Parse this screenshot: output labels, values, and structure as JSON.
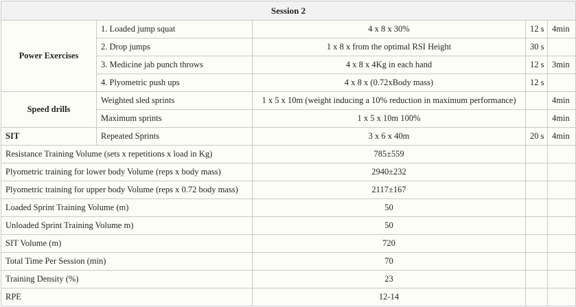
{
  "title": "Session 2",
  "groups": [
    {
      "name": "Power Exercises",
      "exercises": [
        {
          "name": "1. Loaded jump squat",
          "protocol": "4 x 8 x 30%",
          "rest": "12 s",
          "duration": "4min"
        },
        {
          "name": "2. Drop jumps",
          "protocol": "1 x 8 x from the optimal RSI Height",
          "rest": "30 s"
        },
        {
          "name": "3. Medicine jab punch throws",
          "protocol": "4 x 8 x 4Kg in each hand",
          "rest": "12 s",
          "duration": "3min"
        },
        {
          "name": "4. Plyometric push ups",
          "protocol": "4 x 8 x (0.72xBody mass)",
          "rest": "12 s"
        }
      ]
    },
    {
      "name": "Speed drills",
      "exercises": [
        {
          "name": "Weighted sled sprints",
          "protocol": "1 x 5 x 10m (weight inducing a 10% reduction in maximum performance)",
          "duration": "4min"
        },
        {
          "name": "Maximum sprints",
          "protocol": "1 x 5 x 10m 100%",
          "duration": "4min"
        }
      ]
    },
    {
      "name": "SIT",
      "exercises": [
        {
          "name": "Repeated Sprints",
          "protocol": "3 x 6 x 40m",
          "rest": "20 s",
          "duration": "4min"
        }
      ]
    }
  ],
  "volumes": [
    {
      "label": "Resistance Training Volume (sets x repetitions x load in Kg)",
      "value": "785±559"
    },
    {
      "label": "Plyometric training for lower body Volume (reps x body mass)",
      "value": "2940±232"
    },
    {
      "label": "Plyometric training for upper body Volume (reps x 0.72 body mass)",
      "value": "2117±167"
    },
    {
      "label": "Loaded Sprint Training Volume (m)",
      "value": "50"
    },
    {
      "label": "Unloaded Sprint Training Volume m)",
      "value": "50"
    },
    {
      "label": "SIT Volume (m)",
      "value": "720"
    },
    {
      "label": "Total Time Per Session (min)",
      "value": "70"
    },
    {
      "label": "Training Density (%)",
      "value": "23"
    },
    {
      "label": "RPE",
      "value": "12-14"
    }
  ]
}
